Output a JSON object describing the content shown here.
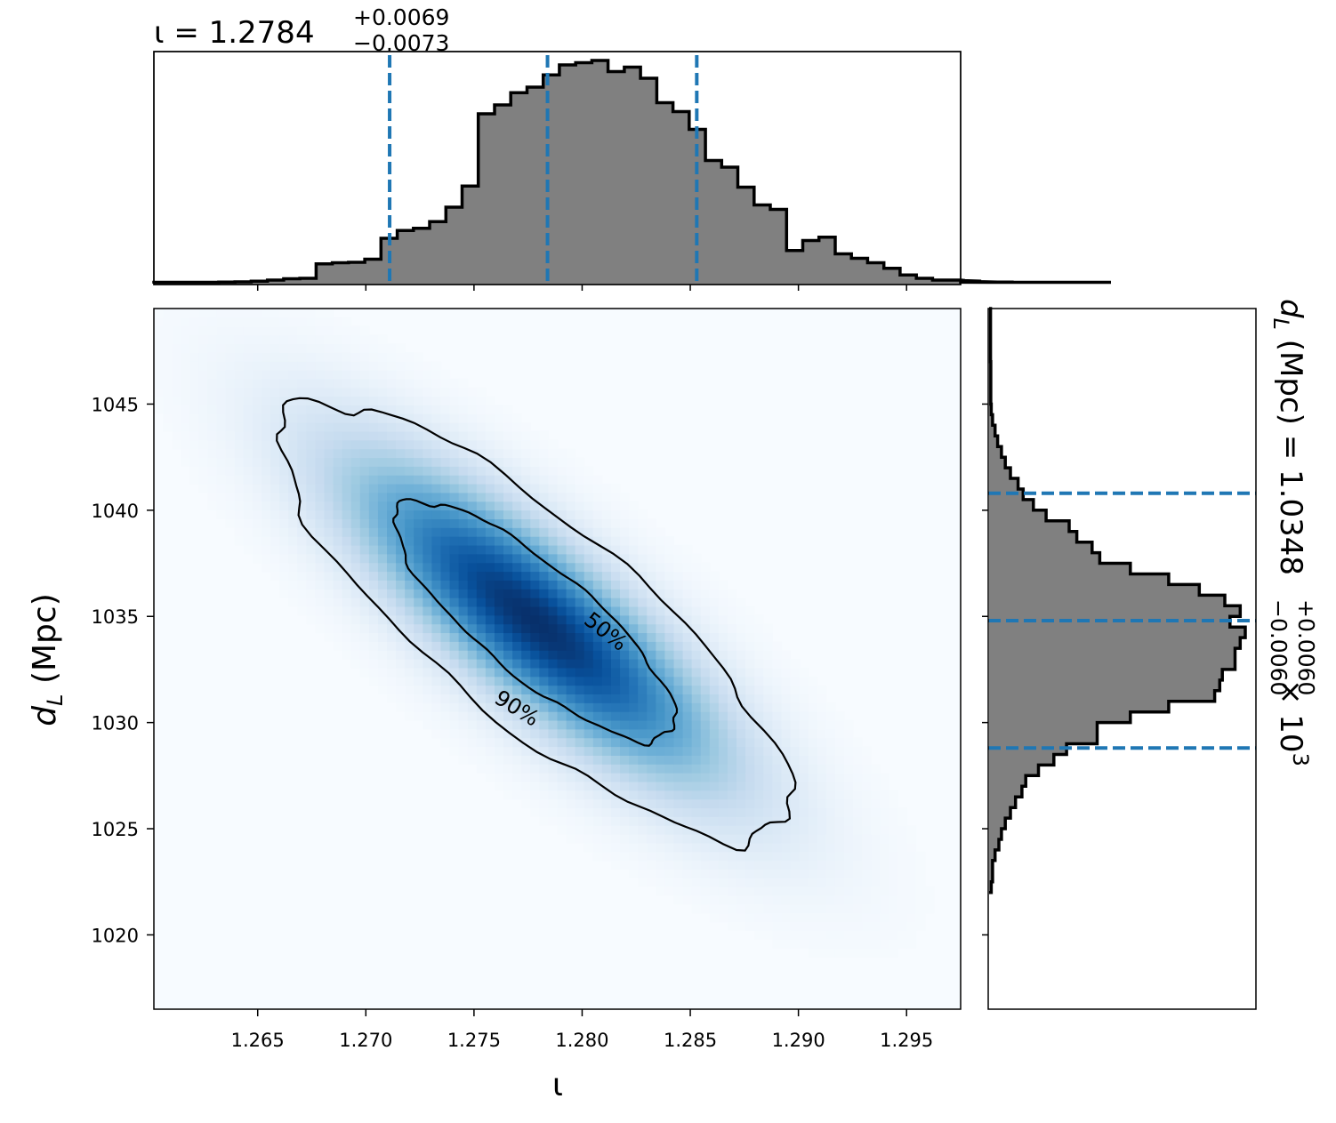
{
  "chart_data": {
    "type": "corner",
    "colors": {
      "posterior_cmap_low": "#f7fbff",
      "posterior_cmap_high": "#08306b",
      "histogram_fill": "#808080",
      "histogram_edge": "#000000",
      "quantile_lines": "#1f77b4",
      "contour_lines": "#000000"
    },
    "parameters": {
      "iota": {
        "label": "ι",
        "median": 1.2784,
        "plus": 0.0069,
        "minus": 0.0073,
        "title": {
          "prefix": "ι = 1.2784",
          "sup": "+0.0069",
          "sub": "−0.0073"
        },
        "range": [
          1.2602,
          1.2975
        ],
        "ticks": [
          1.265,
          1.27,
          1.275,
          1.28,
          1.285,
          1.29,
          1.295
        ],
        "tick_labels": [
          "1.265",
          "1.270",
          "1.275",
          "1.280",
          "1.285",
          "1.290",
          "1.295"
        ],
        "quantile_lines": [
          1.2711,
          1.2784,
          1.2853
        ],
        "histogram": {
          "edges_start": 1.2602,
          "bin_width": 0.00075,
          "counts": [
            0.002,
            0.002,
            0.002,
            0.002,
            0.003,
            0.004,
            0.007,
            0.012,
            0.018,
            0.02,
            0.085,
            0.09,
            0.092,
            0.106,
            0.2,
            0.235,
            0.245,
            0.275,
            0.34,
            0.435,
            0.76,
            0.8,
            0.855,
            0.88,
            0.935,
            0.98,
            0.99,
            1.0,
            0.95,
            0.97,
            0.92,
            0.81,
            0.77,
            0.69,
            0.55,
            0.52,
            0.43,
            0.35,
            0.33,
            0.145,
            0.19,
            0.205,
            0.13,
            0.11,
            0.09,
            0.065,
            0.035,
            0.02,
            0.012,
            0.012,
            0.01,
            0.007,
            0.003,
            0.003,
            0.002,
            0.002,
            0.002,
            0.002,
            0.002,
            0.002
          ]
        }
      },
      "dL": {
        "label_main": "d",
        "label_sub": "L",
        "label_unit": " (Mpc)",
        "median": 1034.8,
        "plus": 6.0,
        "minus": 6.0,
        "title": {
          "prefix": "d",
          "sub_L": "L",
          "mid": " (Mpc) = 1.0348",
          "sup": "+0.0060",
          "sub": "−0.0060",
          "suffix": " × 10",
          "exp": "3"
        },
        "range": [
          1016.5,
          1049.5
        ],
        "ticks": [
          1020,
          1025,
          1030,
          1035,
          1040,
          1045
        ],
        "tick_labels": [
          "1020",
          "1025",
          "1030",
          "1035",
          "1040",
          "1045"
        ],
        "quantile_lines": [
          1028.8,
          1034.8,
          1040.8
        ],
        "histogram": {
          "edges_start": 1022.0,
          "bin_width": 0.5,
          "counts": [
            0.005,
            0.01,
            0.01,
            0.02,
            0.035,
            0.045,
            0.06,
            0.08,
            0.1,
            0.125,
            0.14,
            0.19,
            0.25,
            0.3,
            0.42,
            0.42,
            0.55,
            0.7,
            0.88,
            0.9,
            0.91,
            0.96,
            0.96,
            0.98,
            1.0,
            0.94,
            0.98,
            0.92,
            0.82,
            0.7,
            0.55,
            0.43,
            0.4,
            0.34,
            0.31,
            0.22,
            0.17,
            0.13,
            0.11,
            0.08,
            0.06,
            0.045,
            0.03,
            0.02,
            0.01,
            0.005,
            0.003,
            0.003,
            0.003,
            0.003,
            0.002,
            0.002,
            0.002,
            0.002,
            0.002
          ]
        }
      }
    },
    "joint": {
      "correlation": -0.82,
      "contour_levels": [
        0.5,
        0.9
      ],
      "contour_labels": [
        "50%",
        "90%"
      ]
    }
  }
}
